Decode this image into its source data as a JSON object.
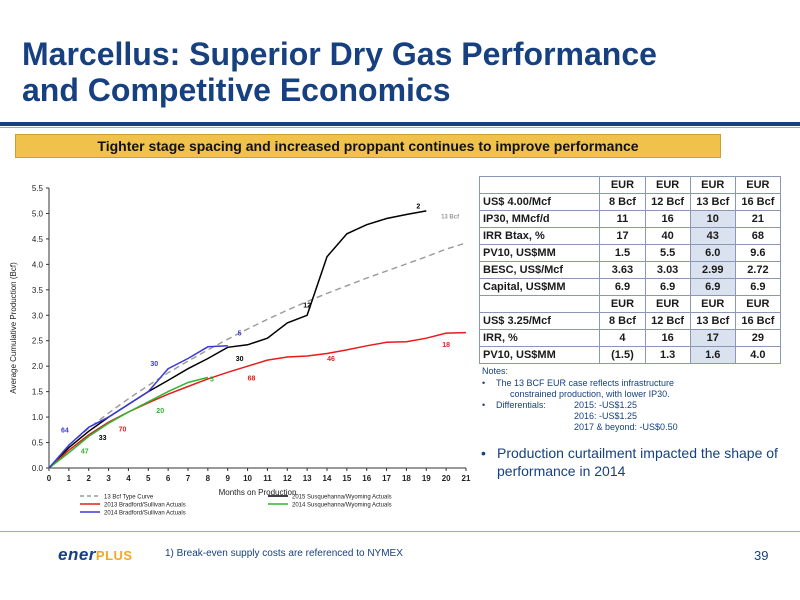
{
  "slide": {
    "title_line1": "Marcellus: Superior Dry Gas Performance",
    "title_line2": "and Competitive Economics",
    "banner": "Tighter stage spacing and increased proppant continues to improve performance",
    "footnote": "1)  Break-even supply costs are referenced to NYMEX",
    "page_number": "39",
    "logo_text": "ener",
    "logo_plus": "PLUS"
  },
  "colors": {
    "title_blue": "#16407f",
    "banner_gold": "#f1c24b",
    "type_curve": "#999999",
    "susq_2015": "#000000",
    "brad_2013": "#e31d1d",
    "susq_2014": "#2fb52f",
    "brad_2014": "#3b3bd6"
  },
  "economics": {
    "header_eur": "EUR",
    "case1_label": "US$ 4.00/Mcf",
    "case2_label": "US$ 3.25/Mcf",
    "eur_cols": [
      "8 Bcf",
      "12 Bcf",
      "13 Bcf",
      "16 Bcf"
    ],
    "case1_rows": [
      {
        "label": "IP30, MMcf/d",
        "values": [
          "11",
          "16",
          "10",
          "21"
        ]
      },
      {
        "label": "IRR Btax, %",
        "values": [
          "17",
          "40",
          "43",
          "68"
        ]
      },
      {
        "label": "PV10, US$MM",
        "values": [
          "1.5",
          "5.5",
          "6.0",
          "9.6"
        ]
      },
      {
        "label": "BESC, US$/Mcf",
        "values": [
          "3.63",
          "3.03",
          "2.99",
          "2.72"
        ]
      },
      {
        "label": "Capital, US$MM",
        "values": [
          "6.9",
          "6.9",
          "6.9",
          "6.9"
        ]
      }
    ],
    "case2_rows": [
      {
        "label": "IRR, %",
        "values": [
          "4",
          "16",
          "17",
          "29"
        ]
      },
      {
        "label": "PV10, US$MM",
        "values": [
          "(1.5)",
          "1.3",
          "1.6",
          "4.0"
        ]
      }
    ]
  },
  "notes": {
    "title": "Notes:",
    "note1_line1": "The 13 BCF EUR case reflects infrastructure",
    "note1_line2": "constrained production, with lower IP30.",
    "diff_label": "Differentials:",
    "diff_2015": "2015: -US$1.25",
    "diff_2016": "2016: -US$1.25",
    "diff_2017": "2017 & beyond: -US$0.50"
  },
  "bullet": "Production curtailment impacted the shape of performance in 2014",
  "chart_data": {
    "type": "line",
    "xlabel": "Months on Production",
    "ylabel": "Average Cumulative Production (Bcf)",
    "xlim": [
      0,
      21
    ],
    "ylim": [
      0,
      5.5
    ],
    "x_ticks": [
      0,
      1,
      2,
      3,
      4,
      5,
      6,
      7,
      8,
      9,
      10,
      11,
      12,
      13,
      14,
      15,
      16,
      17,
      18,
      19,
      20,
      21
    ],
    "y_ticks": [
      "0.0",
      "0.5",
      "1.0",
      "1.5",
      "2.0",
      "2.5",
      "3.0",
      "3.5",
      "4.0",
      "4.5",
      "5.0",
      "5.5"
    ],
    "series": [
      {
        "name": "13 Bcf Type Curve",
        "color": "#999999",
        "dashed": true,
        "x": [
          0,
          1,
          2,
          3,
          4,
          5,
          6,
          7,
          8,
          9,
          10,
          11,
          12,
          13,
          14,
          15,
          16,
          17,
          18,
          19,
          20,
          21
        ],
        "y": [
          0,
          0.45,
          0.78,
          1.08,
          1.36,
          1.62,
          1.87,
          2.1,
          2.32,
          2.53,
          2.73,
          2.92,
          3.1,
          3.27,
          3.43,
          3.58,
          3.73,
          3.87,
          4.01,
          4.15,
          4.3,
          4.42
        ],
        "end_label": "13 Bcf"
      },
      {
        "name": "2015 Susquehanna/Wyoming Actuals",
        "color": "#000000",
        "x": [
          0,
          1,
          2,
          3,
          4,
          5,
          6,
          7,
          8,
          9,
          10,
          11,
          12,
          13,
          14,
          15,
          16,
          17,
          18,
          19
        ],
        "y": [
          0,
          0.4,
          0.72,
          1.0,
          1.25,
          1.5,
          1.72,
          1.95,
          2.15,
          2.37,
          2.42,
          2.55,
          2.85,
          3.0,
          4.15,
          4.6,
          4.78,
          4.9,
          4.98,
          5.05
        ],
        "end_label": "2"
      },
      {
        "name": "2013 Bradford/Sullivan Actuals",
        "color": "#e31d1d",
        "x": [
          0,
          1,
          2,
          3,
          4,
          5,
          6,
          7,
          8,
          9,
          10,
          11,
          12,
          13,
          14,
          15,
          16,
          17,
          18,
          19,
          20,
          21
        ],
        "y": [
          0,
          0.35,
          0.65,
          0.9,
          1.1,
          1.28,
          1.45,
          1.6,
          1.75,
          1.88,
          2.0,
          2.12,
          2.18,
          2.2,
          2.25,
          2.32,
          2.4,
          2.47,
          2.48,
          2.55,
          2.65,
          2.66
        ],
        "end_label": "18"
      },
      {
        "name": "2014 Susquehanna/Wyoming Actuals",
        "color": "#2fb52f",
        "x": [
          0,
          1,
          2,
          3,
          4,
          5,
          6,
          7,
          8
        ],
        "y": [
          0,
          0.3,
          0.62,
          0.88,
          1.1,
          1.3,
          1.5,
          1.68,
          1.78
        ],
        "end_label": "5"
      },
      {
        "name": "2014 Bradford/Sullivan Actuals",
        "color": "#3b3bd6",
        "x": [
          0,
          1,
          2,
          3,
          4,
          5,
          6,
          7,
          8,
          9
        ],
        "y": [
          0,
          0.45,
          0.8,
          1.0,
          1.25,
          1.5,
          1.95,
          2.15,
          2.38,
          2.4
        ],
        "end_label": "5"
      }
    ],
    "point_labels": [
      {
        "text": "64",
        "x": 0.8,
        "y": 0.7,
        "color": "#3b3bd6"
      },
      {
        "text": "47",
        "x": 1.8,
        "y": 0.28,
        "color": "#2fb52f"
      },
      {
        "text": "33",
        "x": 2.7,
        "y": 0.55,
        "color": "#000000"
      },
      {
        "text": "70",
        "x": 3.7,
        "y": 0.72,
        "color": "#e31d1d"
      },
      {
        "text": "20",
        "x": 5.6,
        "y": 1.08,
        "color": "#2fb52f"
      },
      {
        "text": "30",
        "x": 5.3,
        "y": 2.0,
        "color": "#3b3bd6"
      },
      {
        "text": "5",
        "x": 8.2,
        "y": 1.7,
        "color": "#2fb52f"
      },
      {
        "text": "68",
        "x": 10.2,
        "y": 1.72,
        "color": "#e31d1d"
      },
      {
        "text": "30",
        "x": 9.6,
        "y": 2.1,
        "color": "#000000"
      },
      {
        "text": "5",
        "x": 9.6,
        "y": 2.6,
        "color": "#3b3bd6"
      },
      {
        "text": "12",
        "x": 13.0,
        "y": 3.15,
        "color": "#000000"
      },
      {
        "text": "46",
        "x": 14.2,
        "y": 2.1,
        "color": "#e31d1d"
      },
      {
        "text": "18",
        "x": 20.0,
        "y": 2.38,
        "color": "#e31d1d"
      },
      {
        "text": "2",
        "x": 18.6,
        "y": 5.1,
        "color": "#000000"
      },
      {
        "text": "13 Bcf",
        "x": 20.2,
        "y": 4.9,
        "color": "#999999"
      }
    ],
    "legend_position": "bottom"
  }
}
